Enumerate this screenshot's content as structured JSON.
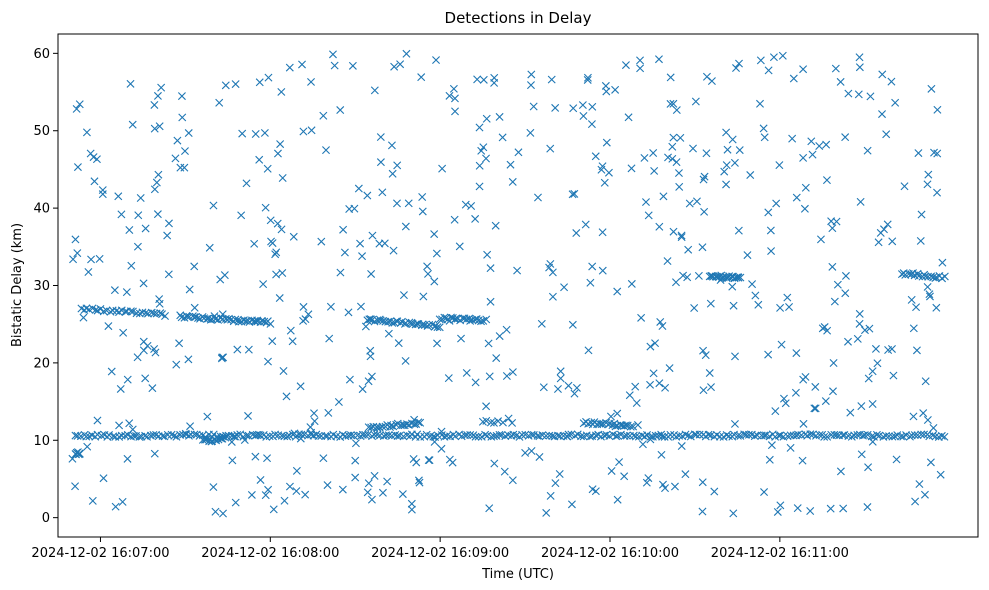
{
  "chart_data": {
    "type": "scatter",
    "title": "Detections in Delay",
    "xlabel": "Time (UTC)",
    "ylabel": "Bistatic Delay (km)",
    "x_type": "time",
    "xlim": [
      "2024-12-02 16:06:45",
      "2024-12-02 16:12:10"
    ],
    "ylim": [
      -2.5,
      62.5
    ],
    "x_ticks": [
      "2024-12-02 16:07:00",
      "2024-12-02 16:08:00",
      "2024-12-02 16:09:00",
      "2024-12-02 16:10:00",
      "2024-12-02 16:11:00"
    ],
    "y_ticks": [
      0,
      10,
      20,
      30,
      40,
      50,
      60
    ],
    "grid": false,
    "marker": "x",
    "color": "#1f77b4",
    "t_range": [
      "2024-12-02 16:06:50",
      "2024-12-02 16:11:59"
    ],
    "tracks": [
      {
        "t_start": "2024-12-02 16:06:51",
        "t_end": "2024-12-02 16:11:58",
        "delay_start": 10.6,
        "delay_end": 10.6,
        "count": 300
      },
      {
        "t_start": "2024-12-02 16:06:51",
        "t_end": "2024-12-02 16:06:53",
        "delay_start": 8.3,
        "delay_end": 8.3,
        "count": 8
      },
      {
        "t_start": "2024-12-02 16:06:53",
        "t_end": "2024-12-02 16:07:23",
        "delay_start": 27.0,
        "delay_end": 26.2,
        "count": 30
      },
      {
        "t_start": "2024-12-02 16:07:28",
        "t_end": "2024-12-02 16:08:00",
        "delay_start": 26.0,
        "delay_end": 25.2,
        "count": 45
      },
      {
        "t_start": "2024-12-02 16:07:36",
        "t_end": "2024-12-02 16:07:44",
        "delay_start": 9.9,
        "delay_end": 10.2,
        "count": 12
      },
      {
        "t_start": "2024-12-02 16:08:35",
        "t_end": "2024-12-02 16:08:53",
        "delay_start": 11.6,
        "delay_end": 12.3,
        "count": 24
      },
      {
        "t_start": "2024-12-02 16:08:34",
        "t_end": "2024-12-02 16:09:00",
        "delay_start": 25.6,
        "delay_end": 24.7,
        "count": 36
      },
      {
        "t_start": "2024-12-02 16:09:00",
        "t_end": "2024-12-02 16:09:15",
        "delay_start": 25.8,
        "delay_end": 25.5,
        "count": 22
      },
      {
        "t_start": "2024-12-02 16:09:15",
        "t_end": "2024-12-02 16:09:22",
        "delay_start": 12.4,
        "delay_end": 12.4,
        "count": 6
      },
      {
        "t_start": "2024-12-02 16:09:51",
        "t_end": "2024-12-02 16:10:08",
        "delay_start": 12.3,
        "delay_end": 11.8,
        "count": 24
      },
      {
        "t_start": "2024-12-02 16:10:35",
        "t_end": "2024-12-02 16:10:46",
        "delay_start": 31.3,
        "delay_end": 30.9,
        "count": 22
      },
      {
        "t_start": "2024-12-02 16:11:43",
        "t_end": "2024-12-02 16:11:58",
        "delay_start": 31.6,
        "delay_end": 31.0,
        "count": 20
      }
    ],
    "scattered_points": {
      "count": 620,
      "delay_range": [
        0.5,
        60
      ]
    }
  }
}
